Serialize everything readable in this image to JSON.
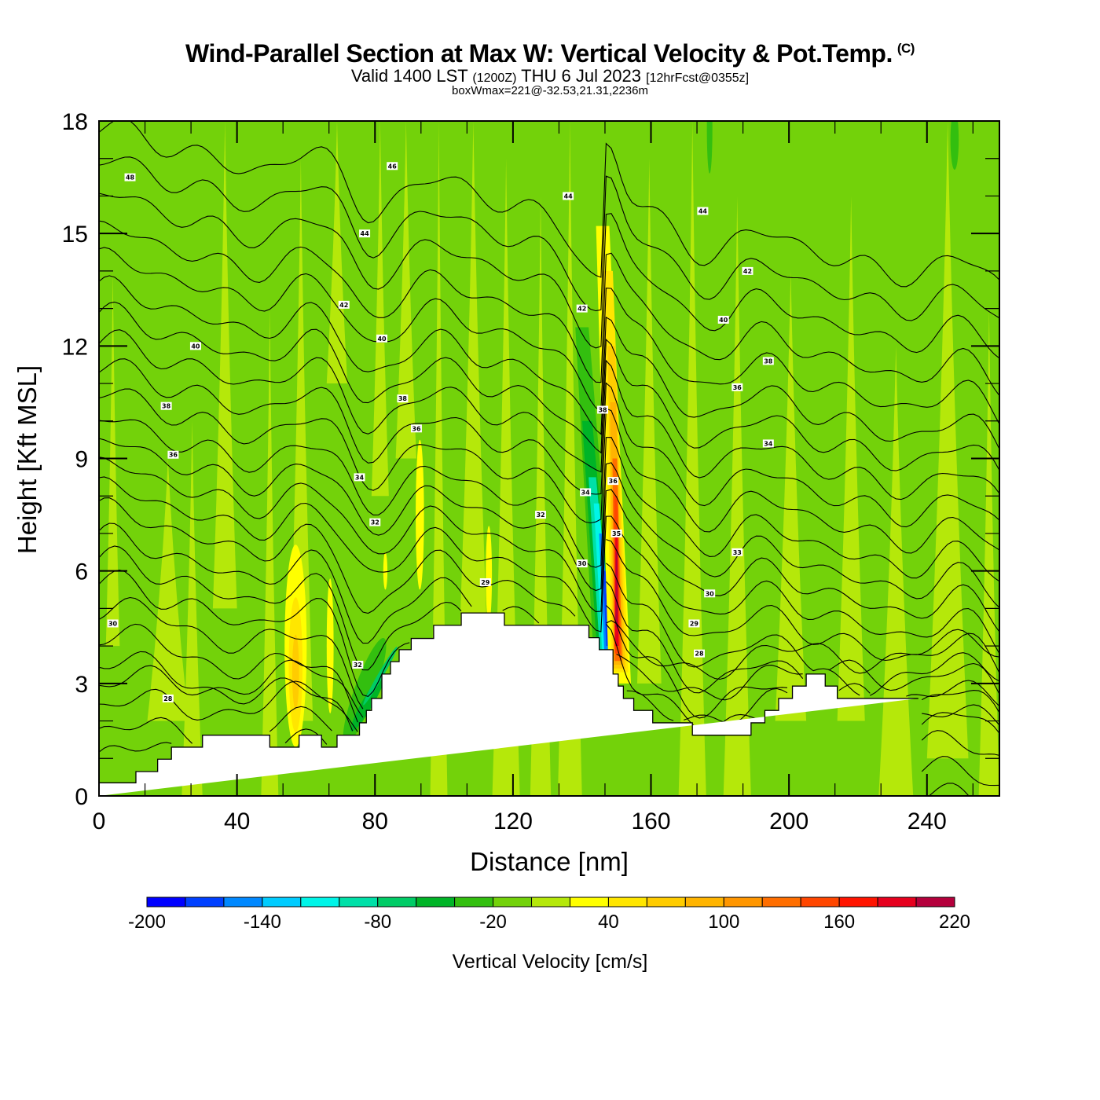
{
  "title": {
    "main": "Wind-Parallel Section at Max W: Vertical Velocity & Pot.Temp.",
    "copyright": "(C)",
    "valid_prefix": "Valid 1400 LST",
    "valid_utc": "(1200Z)",
    "valid_date": "THU 6 Jul 2023",
    "forecast": "[12hrFcst@0355z]",
    "box_wmax": "boxWmax=221@-32.53,21.31,2236m"
  },
  "chart_data": {
    "type": "heatmap",
    "title": "Wind-Parallel Section at Max W: Vertical Velocity & Pot.Temp.",
    "xlabel": "Distance [nm]",
    "ylabel": "Height [Kft MSL]",
    "xlim": [
      0,
      261
    ],
    "ylim": [
      0,
      18
    ],
    "x_ticks": [
      0,
      40,
      80,
      120,
      160,
      200,
      240
    ],
    "x_tick_labels": [
      "0",
      "40",
      "80",
      "120",
      "160",
      "200",
      "240"
    ],
    "x_minor_step": 13.333,
    "y_ticks": [
      0,
      3,
      6,
      9,
      12,
      15,
      18
    ],
    "y_tick_labels": [
      "0",
      "3",
      "6",
      "9",
      "12",
      "15",
      "18"
    ],
    "y_minor_step": 1,
    "grid": false,
    "colorbar": {
      "title": "Vertical Velocity [cm/s]",
      "placement": "bottom",
      "levels": [
        -200,
        -180,
        -160,
        -140,
        -120,
        -100,
        -80,
        -60,
        -40,
        -20,
        0,
        20,
        40,
        60,
        80,
        100,
        120,
        140,
        160,
        180,
        200,
        220
      ],
      "tick_values": [
        -200,
        -140,
        -80,
        -20,
        40,
        100,
        160,
        220
      ],
      "tick_labels": [
        "-200",
        "-140",
        "-80",
        "-20",
        "40",
        "100",
        "160",
        "220"
      ],
      "colors": [
        "#0000ff",
        "#0040ff",
        "#0088ff",
        "#00ccff",
        "#00f5e8",
        "#00e0a8",
        "#00cc66",
        "#00b427",
        "#33bf0f",
        "#73d20a",
        "#b5e80a",
        "#ffff00",
        "#ffe600",
        "#ffcc00",
        "#ffb400",
        "#ff9600",
        "#ff6e00",
        "#ff4600",
        "#ff1400",
        "#e6001e",
        "#b4003c"
      ]
    },
    "vertical_velocity_features": [
      {
        "name": "mountain-wave downdraft",
        "x_nm": 147,
        "z_kft_range": [
          4,
          9
        ],
        "min_cms": -200
      },
      {
        "name": "mountain-wave updraft",
        "x_nm": 151,
        "z_kft_range": [
          3.5,
          14
        ],
        "max_cms": 221
      },
      {
        "name": "lee updraft",
        "x_nm": 57,
        "z_kft_range": [
          1.5,
          6.5
        ],
        "max_cms": 60
      },
      {
        "name": "lee downdraft",
        "x_nm": 77,
        "z_kft_range": [
          1.8,
          5
        ],
        "min_cms": -80
      },
      {
        "name": "upper updraft band",
        "x_nm": 93,
        "z_kft_range": [
          5,
          9
        ],
        "max_cms": 40
      }
    ],
    "terrain_profile": {
      "x_nm": [
        0,
        10.7,
        10.7,
        17,
        17,
        21,
        21,
        30,
        30,
        49.5,
        49.5,
        58,
        58,
        64.5,
        64.5,
        69,
        69,
        75.5,
        75.5,
        77.5,
        77.5,
        79,
        79,
        82,
        82,
        84.5,
        84.5,
        87,
        87,
        90.5,
        90.5,
        93,
        93,
        97,
        97,
        105,
        105,
        117.5,
        117.5,
        128,
        128,
        142,
        142,
        145,
        145,
        146,
        146,
        149,
        149,
        150.5,
        150.5,
        152,
        152,
        155,
        155,
        160.5,
        160.5,
        172,
        172,
        181,
        181,
        189,
        189,
        193,
        193,
        197,
        197,
        201,
        201,
        205,
        205,
        208.5,
        208.5,
        210.5,
        210.5,
        214,
        214,
        224,
        224,
        237.5,
        237.5,
        261
      ],
      "z_kft": [
        0.35,
        0.35,
        0.65,
        0.65,
        0.98,
        0.98,
        1.3,
        1.3,
        1.62,
        1.62,
        1.3,
        1.3,
        1.62,
        1.62,
        1.3,
        1.3,
        1.62,
        1.62,
        1.95,
        1.95,
        2.28,
        2.28,
        2.6,
        2.6,
        3.25,
        3.25,
        3.58,
        3.58,
        3.9,
        3.9,
        4.2,
        4.2,
        4.2,
        4.2,
        4.55,
        4.55,
        4.88,
        4.88,
        4.55,
        4.55,
        4.55,
        4.55,
        4.22,
        4.22,
        3.9,
        3.9,
        3.9,
        3.9,
        3.25,
        3.25,
        2.93,
        2.93,
        2.6,
        2.6,
        2.28,
        2.28,
        1.95,
        1.95,
        1.62,
        1.62,
        1.62,
        1.62,
        1.95,
        1.95,
        2.28,
        2.28,
        2.6,
        2.6,
        2.93,
        2.93,
        3.25,
        3.25,
        3.25,
        3.25,
        2.93,
        2.93,
        2.6,
        2.6,
        2.6,
        2.6
      ]
    },
    "contours": {
      "variable": "Potential Temperature",
      "units": "C",
      "interval": 1,
      "label_interval": 2,
      "range": [
        26,
        49
      ],
      "labels": [
        {
          "text": "48",
          "x_nm": 9,
          "z_kft": 16.5
        },
        {
          "text": "46",
          "x_nm": 85,
          "z_kft": 16.8
        },
        {
          "text": "44",
          "x_nm": 77,
          "z_kft": 15.0
        },
        {
          "text": "44",
          "x_nm": 136,
          "z_kft": 16.0
        },
        {
          "text": "44",
          "x_nm": 175,
          "z_kft": 15.6
        },
        {
          "text": "42",
          "x_nm": 71,
          "z_kft": 13.1
        },
        {
          "text": "42",
          "x_nm": 140,
          "z_kft": 13.0
        },
        {
          "text": "42",
          "x_nm": 188,
          "z_kft": 14.0
        },
        {
          "text": "40",
          "x_nm": 28,
          "z_kft": 12.0
        },
        {
          "text": "40",
          "x_nm": 82,
          "z_kft": 12.2
        },
        {
          "text": "40",
          "x_nm": 181,
          "z_kft": 12.7
        },
        {
          "text": "38",
          "x_nm": 19.5,
          "z_kft": 10.4
        },
        {
          "text": "38",
          "x_nm": 88,
          "z_kft": 10.6
        },
        {
          "text": "38",
          "x_nm": 146,
          "z_kft": 10.3
        },
        {
          "text": "38",
          "x_nm": 194,
          "z_kft": 11.6
        },
        {
          "text": "36",
          "x_nm": 21.5,
          "z_kft": 9.1
        },
        {
          "text": "36",
          "x_nm": 92,
          "z_kft": 9.8
        },
        {
          "text": "36",
          "x_nm": 149,
          "z_kft": 8.4
        },
        {
          "text": "36",
          "x_nm": 185,
          "z_kft": 10.9
        },
        {
          "text": "35",
          "x_nm": 150,
          "z_kft": 7.0
        },
        {
          "text": "34",
          "x_nm": 75.5,
          "z_kft": 8.5
        },
        {
          "text": "34",
          "x_nm": 141,
          "z_kft": 8.1
        },
        {
          "text": "34",
          "x_nm": 194,
          "z_kft": 9.4
        },
        {
          "text": "32",
          "x_nm": 80,
          "z_kft": 7.3
        },
        {
          "text": "32",
          "x_nm": 128,
          "z_kft": 7.5
        },
        {
          "text": "32",
          "x_nm": 75,
          "z_kft": 3.5
        },
        {
          "text": "33",
          "x_nm": 185,
          "z_kft": 6.5
        },
        {
          "text": "30",
          "x_nm": 4,
          "z_kft": 4.6
        },
        {
          "text": "30",
          "x_nm": 140,
          "z_kft": 6.2
        },
        {
          "text": "30",
          "x_nm": 177,
          "z_kft": 5.4
        },
        {
          "text": "29",
          "x_nm": 112,
          "z_kft": 5.7
        },
        {
          "text": "29",
          "x_nm": 172.5,
          "z_kft": 4.6
        },
        {
          "text": "28",
          "x_nm": 20,
          "z_kft": 2.6
        },
        {
          "text": "28",
          "x_nm": 174,
          "z_kft": 3.8
        }
      ]
    }
  }
}
